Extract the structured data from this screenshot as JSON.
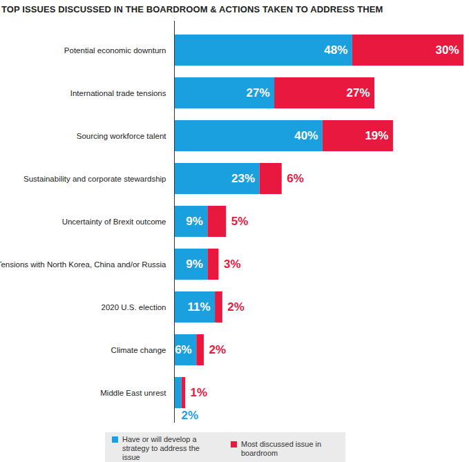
{
  "chart_data": {
    "type": "bar",
    "title": "TOP ISSUES DISCUSSED IN THE BOARDROOM & ACTIONS TAKEN TO ADDRESS THEM",
    "orientation": "horizontal",
    "stacked": true,
    "data_labels": true,
    "tick_labels": "y",
    "legend": "bottom",
    "categories": [
      "Potential economic downturn",
      "International trade tensions",
      "Sourcing workforce talent",
      "Sustainability and corporate stewardship",
      "Uncertainty of Brexit outcome",
      "Tensions with North Korea, China and/or Russia",
      "2020 U.S. election",
      "Climate change",
      "Middle East unrest"
    ],
    "xlim": [
      0,
      78
    ],
    "series": [
      {
        "name": "Have or will develop a strategy to address the issue",
        "color": "#1a9fdf",
        "values": [
          48,
          27,
          40,
          23,
          9,
          9,
          11,
          6,
          2
        ],
        "value_labels": [
          "48%",
          "27%",
          "40%",
          "23%",
          "9%",
          "9%",
          "11%",
          "6%",
          "2%"
        ]
      },
      {
        "name": "Most discussed issue in boardroom",
        "color": "#e8183f",
        "values": [
          30,
          27,
          19,
          6,
          5,
          3,
          2,
          2,
          1
        ],
        "value_labels": [
          "30%",
          "27%",
          "19%",
          "6%",
          "5%",
          "3%",
          "2%",
          "2%",
          "1%"
        ]
      }
    ]
  }
}
